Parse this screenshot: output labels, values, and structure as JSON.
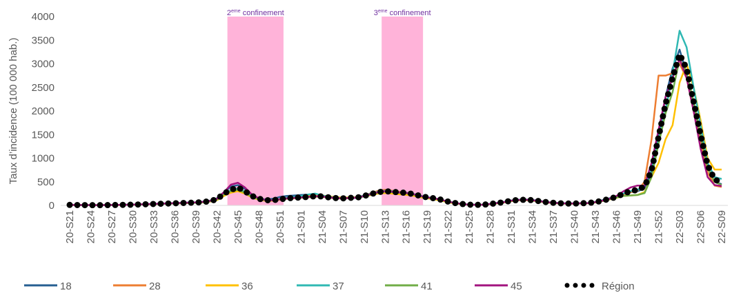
{
  "chart_data": {
    "type": "line",
    "y_label": "Taux d’incidence (100 000 hab.)",
    "ylim": [
      0,
      4000
    ],
    "yticks": [
      0,
      500,
      1000,
      1500,
      2000,
      2500,
      3000,
      3500,
      4000
    ],
    "grid": false,
    "legend": "bottom",
    "annotations": [
      {
        "pre": "2",
        "sup": "eme",
        "text": " confinement",
        "x0": 22.5,
        "x1": 30.5,
        "color": "#ffb3d9"
      },
      {
        "pre": "3",
        "sup": "eme",
        "text": " confinement",
        "x0": 44.5,
        "x1": 50.4,
        "color": "#ffb3d9"
      }
    ],
    "categories": [
      "20-S21",
      null,
      null,
      "20-S24",
      null,
      null,
      "20-S27",
      null,
      null,
      "20-S30",
      null,
      null,
      "20-S33",
      null,
      null,
      "20-S36",
      null,
      null,
      "20-S39",
      null,
      null,
      "20-S42",
      null,
      null,
      "20-S45",
      null,
      null,
      "20-S48",
      null,
      null,
      "20-S51",
      null,
      null,
      "21-S01",
      null,
      null,
      "21-S04",
      null,
      null,
      "21-S07",
      null,
      null,
      "21-S10",
      null,
      null,
      "21-S13",
      null,
      null,
      "21-S16",
      null,
      null,
      "21-S19",
      null,
      null,
      "21-S22",
      null,
      null,
      "21-S25",
      null,
      null,
      "21-S28",
      null,
      null,
      "21-S31",
      null,
      null,
      "21-S34",
      null,
      null,
      "21-S37",
      null,
      null,
      "21-S40",
      null,
      null,
      "21-S43",
      null,
      null,
      "21-S46",
      null,
      null,
      "21-S49",
      null,
      null,
      "21-S52",
      null,
      null,
      "22-S03",
      null,
      null,
      "22-S06",
      null,
      null,
      "22-S09"
    ],
    "series": [
      {
        "name": "18",
        "color": "#255e91",
        "values": [
          12,
          9,
          7,
          6,
          6,
          7,
          9,
          11,
          14,
          17,
          22,
          27,
          32,
          38,
          44,
          48,
          54,
          60,
          66,
          78,
          100,
          150,
          280,
          400,
          430,
          350,
          210,
          150,
          120,
          140,
          180,
          200,
          210,
          220,
          230,
          240,
          210,
          180,
          160,
          150,
          150,
          160,
          190,
          230,
          270,
          290,
          280,
          260,
          250,
          220,
          190,
          160,
          140,
          110,
          75,
          45,
          28,
          14,
          12,
          16,
          32,
          55,
          75,
          105,
          120,
          125,
          115,
          95,
          72,
          58,
          48,
          42,
          42,
          46,
          52,
          75,
          110,
          150,
          190,
          240,
          280,
          300,
          360,
          700,
          1500,
          2300,
          2900,
          3300,
          2800,
          2100,
          1400,
          800,
          500,
          450
        ]
      },
      {
        "name": "28",
        "color": "#ed7d31",
        "values": [
          8,
          7,
          5,
          4,
          5,
          6,
          8,
          9,
          11,
          14,
          19,
          23,
          28,
          33,
          38,
          42,
          48,
          52,
          58,
          66,
          85,
          120,
          230,
          310,
          360,
          290,
          190,
          130,
          100,
          100,
          120,
          140,
          150,
          160,
          170,
          185,
          180,
          165,
          150,
          145,
          155,
          170,
          210,
          260,
          310,
          330,
          310,
          290,
          270,
          240,
          200,
          165,
          140,
          110,
          75,
          45,
          26,
          12,
          10,
          14,
          28,
          46,
          65,
          95,
          110,
          115,
          105,
          85,
          66,
          52,
          42,
          38,
          38,
          42,
          48,
          65,
          95,
          135,
          170,
          230,
          280,
          310,
          500,
          1400,
          2750,
          2750,
          2800,
          3000,
          2700,
          2000,
          1300,
          700,
          420,
          390
        ]
      },
      {
        "name": "36",
        "color": "#ffc000",
        "values": [
          9,
          7,
          6,
          5,
          4,
          5,
          7,
          9,
          11,
          13,
          18,
          22,
          27,
          31,
          36,
          40,
          45,
          50,
          55,
          62,
          80,
          110,
          200,
          270,
          300,
          250,
          170,
          120,
          95,
          100,
          120,
          150,
          170,
          190,
          210,
          220,
          210,
          190,
          175,
          165,
          170,
          175,
          190,
          220,
          250,
          260,
          250,
          235,
          225,
          205,
          175,
          150,
          130,
          100,
          65,
          40,
          25,
          12,
          10,
          13,
          26,
          44,
          62,
          90,
          105,
          110,
          100,
          80,
          62,
          50,
          40,
          36,
          36,
          40,
          45,
          62,
          90,
          125,
          160,
          200,
          210,
          220,
          280,
          600,
          900,
          1400,
          1700,
          2600,
          3000,
          2500,
          1800,
          1000,
          760,
          760
        ]
      },
      {
        "name": "37",
        "color": "#2fb8b3",
        "values": [
          10,
          8,
          6,
          5,
          5,
          6,
          8,
          10,
          12,
          15,
          20,
          24,
          29,
          34,
          39,
          44,
          49,
          54,
          59,
          68,
          88,
          125,
          240,
          320,
          360,
          290,
          190,
          135,
          105,
          110,
          130,
          160,
          180,
          200,
          230,
          250,
          210,
          180,
          160,
          150,
          160,
          170,
          210,
          250,
          290,
          310,
          300,
          280,
          270,
          245,
          205,
          175,
          150,
          120,
          80,
          50,
          30,
          15,
          12,
          15,
          30,
          50,
          70,
          100,
          115,
          120,
          110,
          90,
          70,
          55,
          45,
          40,
          40,
          45,
          50,
          70,
          100,
          140,
          180,
          250,
          300,
          330,
          420,
          800,
          1400,
          2000,
          2800,
          3700,
          3350,
          2500,
          1700,
          900,
          600,
          560
        ]
      },
      {
        "name": "41",
        "color": "#70ad47",
        "values": [
          9,
          7,
          6,
          5,
          5,
          6,
          8,
          10,
          12,
          14,
          19,
          24,
          29,
          33,
          38,
          43,
          48,
          53,
          58,
          67,
          85,
          125,
          230,
          300,
          330,
          270,
          185,
          130,
          105,
          105,
          125,
          145,
          155,
          165,
          175,
          190,
          185,
          170,
          155,
          150,
          160,
          165,
          195,
          230,
          270,
          290,
          280,
          265,
          255,
          230,
          195,
          165,
          145,
          115,
          78,
          48,
          28,
          14,
          11,
          14,
          28,
          48,
          68,
          96,
          110,
          115,
          105,
          85,
          66,
          52,
          42,
          38,
          38,
          42,
          47,
          65,
          95,
          130,
          165,
          200,
          210,
          220,
          260,
          600,
          1300,
          1950,
          2400,
          3100,
          2800,
          2200,
          1500,
          800,
          500,
          430
        ]
      },
      {
        "name": "45",
        "color": "#a2137e",
        "values": [
          11,
          9,
          7,
          6,
          6,
          7,
          9,
          11,
          13,
          16,
          21,
          26,
          31,
          36,
          42,
          47,
          52,
          58,
          63,
          74,
          95,
          140,
          280,
          440,
          480,
          380,
          230,
          150,
          110,
          110,
          130,
          150,
          160,
          170,
          180,
          195,
          190,
          170,
          155,
          150,
          160,
          165,
          200,
          240,
          280,
          300,
          290,
          275,
          265,
          240,
          200,
          170,
          150,
          120,
          80,
          50,
          30,
          15,
          12,
          15,
          30,
          50,
          70,
          100,
          115,
          120,
          110,
          90,
          70,
          55,
          45,
          40,
          40,
          45,
          50,
          70,
          100,
          140,
          200,
          300,
          380,
          420,
          420,
          900,
          1600,
          2300,
          2700,
          3100,
          2700,
          2000,
          1200,
          600,
          430,
          410
        ]
      },
      {
        "name": "Région",
        "color": "#000000",
        "dotted": true,
        "values": [
          10,
          8,
          6,
          5,
          5,
          6,
          8,
          10,
          12,
          15,
          20,
          25,
          30,
          35,
          40,
          45,
          50,
          55,
          60,
          70,
          90,
          130,
          250,
          330,
          380,
          300,
          200,
          140,
          110,
          110,
          130,
          150,
          160,
          170,
          180,
          195,
          190,
          170,
          155,
          150,
          160,
          165,
          200,
          240,
          280,
          300,
          290,
          275,
          265,
          240,
          200,
          170,
          150,
          120,
          80,
          50,
          30,
          15,
          12,
          15,
          30,
          50,
          70,
          100,
          115,
          120,
          110,
          90,
          70,
          55,
          45,
          40,
          40,
          45,
          50,
          70,
          100,
          140,
          180,
          250,
          300,
          330,
          400,
          740,
          1450,
          2150,
          2700,
          3200,
          2900,
          2200,
          1500,
          850,
          550,
          480
        ]
      }
    ]
  }
}
